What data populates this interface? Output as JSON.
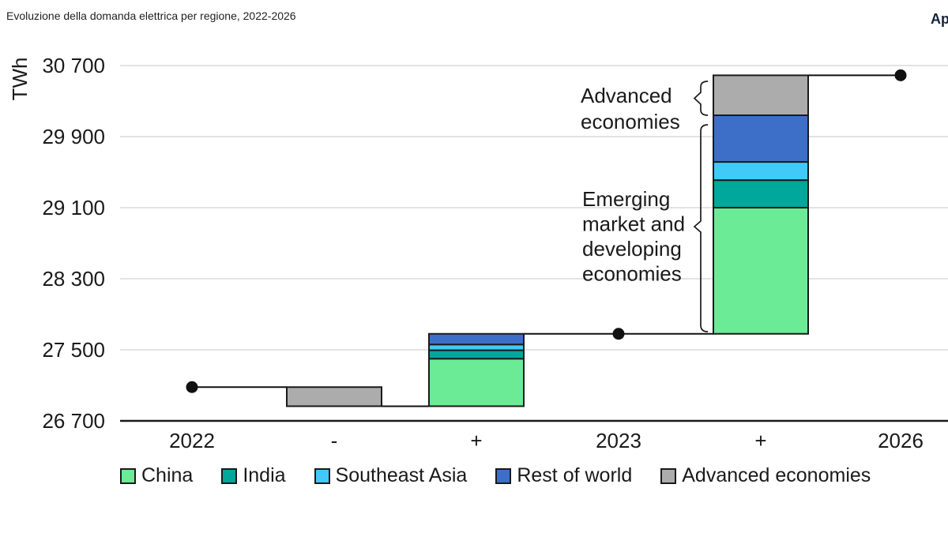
{
  "header": {
    "title": "Evoluzione della domanda elettrica per regione, 2022-2026",
    "corner_label": "Ap"
  },
  "chart_data": {
    "type": "waterfall_stacked_bar",
    "title": "Evoluzione della domanda elettrica per regione, 2022-2026",
    "unit": "TWh",
    "y_axis": {
      "label": "TWh",
      "min": 26700,
      "max": 30700,
      "tick_interval": 800,
      "ticks": [
        26700,
        27500,
        28300,
        29100,
        29900,
        30700
      ],
      "tick_labels": [
        "26 700",
        "27 500",
        "28 300",
        "29 100",
        "29 900",
        "30 700"
      ],
      "grid": true
    },
    "x_labels": [
      "2022",
      "-",
      "+",
      "2023",
      "+",
      "2026"
    ],
    "series": [
      {
        "name": "China",
        "color": "#6CEB97"
      },
      {
        "name": "India",
        "color": "#00A79B"
      },
      {
        "name": "Southeast Asia",
        "color": "#41C9F8"
      },
      {
        "name": "Rest of world",
        "color": "#3E6FC8"
      },
      {
        "name": "Advanced economies",
        "color": "#ACACAC"
      }
    ],
    "elements": [
      {
        "x_index": 0,
        "kind": "point",
        "label": "2022",
        "value": 27080
      },
      {
        "x_index": 1,
        "kind": "bar",
        "direction": "decrease",
        "start": 27080,
        "end": 26865,
        "segments": [
          {
            "series": "Advanced economies",
            "value": 215
          }
        ]
      },
      {
        "x_index": 2,
        "kind": "bar",
        "direction": "increase",
        "start": 26865,
        "end": 27680,
        "segments": [
          {
            "series": "China",
            "value": 535
          },
          {
            "series": "India",
            "value": 95
          },
          {
            "series": "Southeast Asia",
            "value": 65
          },
          {
            "series": "Rest of world",
            "value": 120
          }
        ]
      },
      {
        "x_index": 3,
        "kind": "point",
        "label": "2023",
        "value": 27680
      },
      {
        "x_index": 4,
        "kind": "bar",
        "direction": "increase",
        "start": 27680,
        "end": 30590,
        "segments": [
          {
            "series": "China",
            "value": 1420
          },
          {
            "series": "India",
            "value": 310
          },
          {
            "series": "Southeast Asia",
            "value": 205
          },
          {
            "series": "Rest of world",
            "value": 525
          },
          {
            "series": "Advanced economies",
            "value": 450
          }
        ]
      },
      {
        "x_index": 5,
        "kind": "point",
        "label": "2026",
        "value": 30590
      }
    ],
    "annotations": [
      {
        "id": "advanced",
        "lines": [
          "Advanced",
          "economies"
        ],
        "target": "Advanced economies segment 2023-2026"
      },
      {
        "id": "emerging",
        "lines": [
          "Emerging",
          "market and",
          "developing",
          "economies"
        ],
        "target": "Emerging market segments 2023-2026"
      }
    ],
    "legend_position": "bottom",
    "colors": {
      "connector": "#111111",
      "bar_border": "#1a1a1a",
      "gridline": "#e3e3e3",
      "axis": "#1a1a1a",
      "point": "#111111"
    }
  },
  "legend": {
    "items": [
      "China",
      "India",
      "Southeast Asia",
      "Rest of world",
      "Advanced economies"
    ]
  }
}
